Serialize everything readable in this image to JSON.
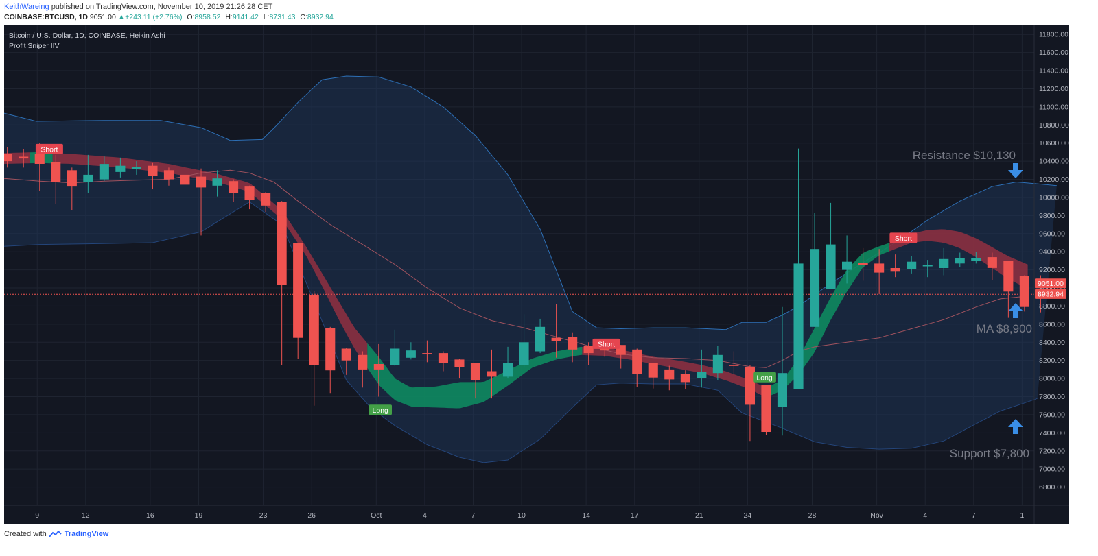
{
  "header": {
    "author": "KeithWareing",
    "published_text": "published on TradingView.com, November 10, 2019 21:26:28 CET",
    "symbol": "COINBASE:BTCUSD, 1D",
    "last": "9051.00",
    "change_arrow": "▲",
    "change": "+243.11 (+2.76%)",
    "o_label": "O:",
    "o_value": "8958.52",
    "h_label": "H:",
    "h_value": "9141.42",
    "l_label": "L:",
    "l_value": "8731.43",
    "c_label": "C:",
    "c_value": "8932.94"
  },
  "legend": {
    "title": "Bitcoin / U.S. Dollar, 1D, COINBASE, Heikin Ashi",
    "indicator": "Profit Sniper IIV"
  },
  "annotations": {
    "resistance": "Resistance $10,130",
    "ma": "MA $8,900",
    "support": "Support $7,800"
  },
  "price_tags": {
    "last": "9051.00",
    "close": "8932.94"
  },
  "footer": {
    "created_with": "Created with",
    "brand": "TradingView"
  },
  "colors": {
    "background": "#131722",
    "bull": "#26a69a",
    "bear": "#ef5350",
    "band_fill": "#1e3a5f",
    "band_line": "#2d6fb5",
    "ribbon_green": "#0e8a5f",
    "ribbon_red": "#8b3040",
    "ma_line": "#a0525e",
    "arrow": "#3a8ee6",
    "long_tag": "#43a047",
    "short_tag": "#e5454f"
  },
  "chart_data": {
    "type": "candlestick",
    "title": "Bitcoin / U.S. Dollar, 1D, COINBASE, Heikin Ashi",
    "ylim": [
      6600,
      11900
    ],
    "y_ticks": [
      6800,
      7000,
      7200,
      7400,
      7600,
      7800,
      8000,
      8200,
      8400,
      8600,
      8800,
      9000,
      9200,
      9400,
      9600,
      9800,
      10000,
      10200,
      10400,
      10600,
      10800,
      11000,
      11200,
      11400,
      11600,
      11800
    ],
    "y_tick_labels": [
      "6800.00",
      "7000.00",
      "7200.00",
      "7400.00",
      "7600.00",
      "7800.00",
      "8000.00",
      "8200.00",
      "8400.00",
      "8600.00",
      "8800.00",
      "9000.00",
      "9200.00",
      "9400.00",
      "9600.00",
      "9800.00",
      "10000.00",
      "10200.00",
      "10400.00",
      "10600.00",
      "10800.00",
      "11000.00",
      "11200.00",
      "11400.00",
      "11600.00",
      "11800.00"
    ],
    "x_range": [
      -0.2,
      63.6
    ],
    "x_ticks": [
      {
        "i": 1.85,
        "label": "9"
      },
      {
        "i": 4.85,
        "label": "12"
      },
      {
        "i": 8.85,
        "label": "16"
      },
      {
        "i": 11.85,
        "label": "19"
      },
      {
        "i": 15.85,
        "label": "23"
      },
      {
        "i": 18.85,
        "label": "26"
      },
      {
        "i": 22.85,
        "label": "Oct"
      },
      {
        "i": 25.85,
        "label": "4"
      },
      {
        "i": 28.85,
        "label": "7"
      },
      {
        "i": 31.85,
        "label": "10"
      },
      {
        "i": 35.85,
        "label": "14"
      },
      {
        "i": 38.85,
        "label": "17"
      },
      {
        "i": 42.85,
        "label": "21"
      },
      {
        "i": 45.85,
        "label": "24"
      },
      {
        "i": 49.85,
        "label": "28"
      },
      {
        "i": 53.85,
        "label": "Nov"
      },
      {
        "i": 56.85,
        "label": "4"
      },
      {
        "i": 59.85,
        "label": "7"
      },
      {
        "i": 62.85,
        "label": "1"
      }
    ],
    "candles": [
      {
        "o": 10480,
        "h": 10560,
        "l": 10330,
        "c": 10400
      },
      {
        "o": 10450,
        "h": 10530,
        "l": 10330,
        "c": 10430
      },
      {
        "o": 10480,
        "h": 10600,
        "l": 10070,
        "c": 10370
      },
      {
        "o": 10390,
        "h": 10470,
        "l": 9930,
        "c": 10170
      },
      {
        "o": 10300,
        "h": 10330,
        "l": 9860,
        "c": 10120
      },
      {
        "o": 10170,
        "h": 10470,
        "l": 10050,
        "c": 10250
      },
      {
        "o": 10200,
        "h": 10460,
        "l": 10180,
        "c": 10370
      },
      {
        "o": 10280,
        "h": 10440,
        "l": 10220,
        "c": 10350
      },
      {
        "o": 10310,
        "h": 10400,
        "l": 10250,
        "c": 10340
      },
      {
        "o": 10350,
        "h": 10380,
        "l": 10090,
        "c": 10240
      },
      {
        "o": 10300,
        "h": 10330,
        "l": 10130,
        "c": 10200
      },
      {
        "o": 10250,
        "h": 10280,
        "l": 10060,
        "c": 10140
      },
      {
        "o": 10230,
        "h": 10320,
        "l": 9580,
        "c": 10110
      },
      {
        "o": 10130,
        "h": 10300,
        "l": 10010,
        "c": 10210
      },
      {
        "o": 10180,
        "h": 10200,
        "l": 9950,
        "c": 10050
      },
      {
        "o": 10120,
        "h": 10130,
        "l": 9870,
        "c": 9970
      },
      {
        "o": 10050,
        "h": 10060,
        "l": 9840,
        "c": 9910
      },
      {
        "o": 9950,
        "h": 9960,
        "l": 8150,
        "c": 9030
      },
      {
        "o": 9500,
        "h": 9500,
        "l": 8220,
        "c": 8450
      },
      {
        "o": 8920,
        "h": 8970,
        "l": 7700,
        "c": 8150
      },
      {
        "o": 8560,
        "h": 8570,
        "l": 7840,
        "c": 8090
      },
      {
        "o": 8330,
        "h": 8340,
        "l": 8040,
        "c": 8200
      },
      {
        "o": 8260,
        "h": 8300,
        "l": 7900,
        "c": 8100
      },
      {
        "o": 8160,
        "h": 8380,
        "l": 7800,
        "c": 8100
      },
      {
        "o": 8150,
        "h": 8540,
        "l": 8140,
        "c": 8330
      },
      {
        "o": 8230,
        "h": 8400,
        "l": 8210,
        "c": 8310
      },
      {
        "o": 8280,
        "h": 8420,
        "l": 8180,
        "c": 8270
      },
      {
        "o": 8280,
        "h": 8300,
        "l": 8080,
        "c": 8170
      },
      {
        "o": 8210,
        "h": 8220,
        "l": 8000,
        "c": 8130
      },
      {
        "o": 8170,
        "h": 8170,
        "l": 7780,
        "c": 7980
      },
      {
        "o": 8080,
        "h": 8320,
        "l": 7780,
        "c": 8020
      },
      {
        "o": 8020,
        "h": 8350,
        "l": 8000,
        "c": 8170
      },
      {
        "o": 8150,
        "h": 8710,
        "l": 8120,
        "c": 8400
      },
      {
        "o": 8300,
        "h": 8660,
        "l": 8280,
        "c": 8570
      },
      {
        "o": 8450,
        "h": 8820,
        "l": 8230,
        "c": 8410
      },
      {
        "o": 8460,
        "h": 8510,
        "l": 8180,
        "c": 8320
      },
      {
        "o": 8360,
        "h": 8400,
        "l": 8150,
        "c": 8280
      },
      {
        "o": 8340,
        "h": 8420,
        "l": 8240,
        "c": 8310
      },
      {
        "o": 8370,
        "h": 8370,
        "l": 8110,
        "c": 8260
      },
      {
        "o": 8320,
        "h": 8330,
        "l": 7910,
        "c": 8050
      },
      {
        "o": 8170,
        "h": 8170,
        "l": 7890,
        "c": 8010
      },
      {
        "o": 8100,
        "h": 8140,
        "l": 7870,
        "c": 7990
      },
      {
        "o": 8050,
        "h": 8090,
        "l": 7880,
        "c": 7960
      },
      {
        "o": 8000,
        "h": 8320,
        "l": 7900,
        "c": 8070
      },
      {
        "o": 8060,
        "h": 8360,
        "l": 7980,
        "c": 8260
      },
      {
        "o": 8150,
        "h": 8300,
        "l": 8050,
        "c": 8140
      },
      {
        "o": 8130,
        "h": 8150,
        "l": 7310,
        "c": 7710
      },
      {
        "o": 7930,
        "h": 7930,
        "l": 7380,
        "c": 7410
      },
      {
        "o": 7690,
        "h": 8790,
        "l": 7370,
        "c": 8060
      },
      {
        "o": 7880,
        "h": 10540,
        "l": 7880,
        "c": 9270
      },
      {
        "o": 8570,
        "h": 9830,
        "l": 8570,
        "c": 9430
      },
      {
        "o": 8990,
        "h": 9940,
        "l": 8990,
        "c": 9480
      },
      {
        "o": 9200,
        "h": 9580,
        "l": 9050,
        "c": 9290
      },
      {
        "o": 9280,
        "h": 9440,
        "l": 9080,
        "c": 9250
      },
      {
        "o": 9270,
        "h": 9430,
        "l": 8930,
        "c": 9170
      },
      {
        "o": 9220,
        "h": 9370,
        "l": 9120,
        "c": 9180
      },
      {
        "o": 9210,
        "h": 9350,
        "l": 9160,
        "c": 9290
      },
      {
        "o": 9240,
        "h": 9310,
        "l": 9120,
        "c": 9250
      },
      {
        "o": 9220,
        "h": 9440,
        "l": 9140,
        "c": 9320
      },
      {
        "o": 9270,
        "h": 9390,
        "l": 9230,
        "c": 9330
      },
      {
        "o": 9300,
        "h": 9400,
        "l": 9270,
        "c": 9330
      },
      {
        "o": 9340,
        "h": 9390,
        "l": 9090,
        "c": 9220
      },
      {
        "o": 9300,
        "h": 9300,
        "l": 8670,
        "c": 8960
      },
      {
        "o": 9130,
        "h": 9140,
        "l": 8740,
        "c": 8790
      },
      {
        "o": 8960,
        "h": 9140,
        "l": 8730,
        "c": 8930
      }
    ],
    "bollinger_upper": [
      [
        -0.2,
        10930
      ],
      [
        1.8,
        10840
      ],
      [
        6,
        10850
      ],
      [
        9.5,
        10850
      ],
      [
        12,
        10770
      ],
      [
        13.8,
        10630
      ],
      [
        15.8,
        10640
      ],
      [
        16.7,
        10800
      ],
      [
        18,
        11050
      ],
      [
        19.5,
        11300
      ],
      [
        21,
        11340
      ],
      [
        23,
        11330
      ],
      [
        25,
        11220
      ],
      [
        27,
        11000
      ],
      [
        29,
        10680
      ],
      [
        31,
        10250
      ],
      [
        33,
        9650
      ],
      [
        35,
        8740
      ],
      [
        36.5,
        8560
      ],
      [
        38,
        8550
      ],
      [
        40,
        8560
      ],
      [
        42,
        8560
      ],
      [
        44.5,
        8540
      ],
      [
        45.5,
        8620
      ],
      [
        47,
        8620
      ],
      [
        48,
        8700
      ],
      [
        49,
        8800
      ],
      [
        51,
        9050
      ],
      [
        53,
        9280
      ],
      [
        55,
        9500
      ],
      [
        57,
        9750
      ],
      [
        59,
        9960
      ],
      [
        61,
        10120
      ],
      [
        62.5,
        10170
      ],
      [
        63.8,
        10150
      ],
      [
        65,
        10130
      ]
    ],
    "bollinger_lower": [
      [
        -0.2,
        9460
      ],
      [
        2,
        9480
      ],
      [
        6,
        9490
      ],
      [
        9,
        9500
      ],
      [
        12,
        9620
      ],
      [
        15,
        9950
      ],
      [
        17,
        9700
      ],
      [
        19,
        8850
      ],
      [
        21,
        7980
      ],
      [
        22.5,
        7680
      ],
      [
        24,
        7480
      ],
      [
        26,
        7270
      ],
      [
        28,
        7130
      ],
      [
        29.5,
        7070
      ],
      [
        31,
        7100
      ],
      [
        33,
        7330
      ],
      [
        35,
        7680
      ],
      [
        36.5,
        7930
      ],
      [
        38,
        7950
      ],
      [
        40,
        7940
      ],
      [
        42,
        7940
      ],
      [
        44,
        7870
      ],
      [
        45.5,
        7620
      ],
      [
        47,
        7520
      ],
      [
        48,
        7450
      ],
      [
        50,
        7300
      ],
      [
        52,
        7240
      ],
      [
        54,
        7220
      ],
      [
        56,
        7230
      ],
      [
        58,
        7310
      ],
      [
        60,
        7500
      ],
      [
        61.5,
        7640
      ],
      [
        63,
        7730
      ],
      [
        63.8,
        7780
      ]
    ],
    "moving_average": [
      [
        -0.2,
        10210
      ],
      [
        2,
        10180
      ],
      [
        4,
        10160
      ],
      [
        6,
        10180
      ],
      [
        8,
        10190
      ],
      [
        10,
        10200
      ],
      [
        12,
        10270
      ],
      [
        13.8,
        10300
      ],
      [
        15,
        10270
      ],
      [
        16.5,
        10170
      ],
      [
        18,
        9960
      ],
      [
        20,
        9700
      ],
      [
        22,
        9480
      ],
      [
        24,
        9260
      ],
      [
        26,
        9000
      ],
      [
        28,
        8780
      ],
      [
        30,
        8640
      ],
      [
        32,
        8560
      ],
      [
        34,
        8460
      ],
      [
        36,
        8360
      ],
      [
        38,
        8270
      ],
      [
        40,
        8230
      ],
      [
        42,
        8220
      ],
      [
        44,
        8200
      ],
      [
        46,
        8130
      ],
      [
        47,
        8120
      ],
      [
        48,
        8200
      ],
      [
        49,
        8300
      ],
      [
        50,
        8350
      ],
      [
        52,
        8400
      ],
      [
        54,
        8450
      ],
      [
        56,
        8550
      ],
      [
        58,
        8650
      ],
      [
        60,
        8790
      ],
      [
        61.5,
        8880
      ],
      [
        63.2,
        8910
      ]
    ],
    "ribbon_upper": [
      [
        -0.2,
        10490
      ],
      [
        2,
        10500
      ],
      [
        4,
        10480
      ],
      [
        7,
        10440
      ],
      [
        10,
        10370
      ],
      [
        13,
        10260
      ],
      [
        15,
        10160
      ],
      [
        17,
        9860
      ],
      [
        18.5,
        9460
      ],
      [
        19.5,
        9160
      ],
      [
        20.5,
        8860
      ],
      [
        21.5,
        8560
      ],
      [
        23,
        8240
      ],
      [
        24,
        8000
      ],
      [
        25,
        7900
      ],
      [
        26.5,
        7910
      ],
      [
        28,
        7960
      ],
      [
        29.5,
        7960
      ],
      [
        31,
        8090
      ],
      [
        32.5,
        8220
      ],
      [
        34,
        8300
      ],
      [
        35.5,
        8350
      ],
      [
        37,
        8340
      ],
      [
        38.5,
        8300
      ],
      [
        40,
        8240
      ],
      [
        41.5,
        8200
      ],
      [
        43,
        8150
      ],
      [
        44.5,
        8080
      ],
      [
        46,
        7980
      ],
      [
        47,
        7900
      ],
      [
        48,
        7980
      ],
      [
        49,
        8220
      ],
      [
        50,
        8560
      ],
      [
        51,
        8900
      ],
      [
        52,
        9200
      ],
      [
        53,
        9390
      ],
      [
        54,
        9460
      ],
      [
        55,
        9520
      ],
      [
        56,
        9600
      ],
      [
        57,
        9640
      ],
      [
        58,
        9650
      ],
      [
        59,
        9620
      ],
      [
        60,
        9550
      ],
      [
        61,
        9450
      ],
      [
        62,
        9350
      ],
      [
        63.2,
        9260
      ]
    ],
    "ribbon_lower": [
      [
        -0.2,
        10370
      ],
      [
        2,
        10380
      ],
      [
        4,
        10370
      ],
      [
        7,
        10330
      ],
      [
        10,
        10270
      ],
      [
        13,
        10170
      ],
      [
        15,
        10060
      ],
      [
        17,
        9760
      ],
      [
        18.5,
        9360
      ],
      [
        19.5,
        9020
      ],
      [
        20.5,
        8660
      ],
      [
        21.5,
        8330
      ],
      [
        23,
        7930
      ],
      [
        24,
        7760
      ],
      [
        25,
        7690
      ],
      [
        26.5,
        7680
      ],
      [
        28,
        7670
      ],
      [
        29.5,
        7740
      ],
      [
        31,
        7920
      ],
      [
        32.5,
        8120
      ],
      [
        34,
        8210
      ],
      [
        35.5,
        8260
      ],
      [
        37,
        8250
      ],
      [
        38.5,
        8210
      ],
      [
        40,
        8160
      ],
      [
        41.5,
        8110
      ],
      [
        43,
        8060
      ],
      [
        44.5,
        7980
      ],
      [
        46,
        7880
      ],
      [
        47,
        7790
      ],
      [
        48,
        7870
      ],
      [
        49,
        8040
      ],
      [
        50,
        8290
      ],
      [
        51,
        8650
      ],
      [
        52,
        8960
      ],
      [
        53,
        9230
      ],
      [
        54,
        9360
      ],
      [
        55,
        9430
      ],
      [
        56,
        9500
      ],
      [
        57,
        9520
      ],
      [
        58,
        9500
      ],
      [
        59,
        9440
      ],
      [
        60,
        9340
      ],
      [
        61,
        9220
      ],
      [
        62,
        9100
      ],
      [
        63.2,
        8990
      ]
    ],
    "ribbon_red_ranges": [
      [
        -0.2,
        1.4
      ],
      [
        2.8,
        22.3
      ],
      [
        35.6,
        47.2
      ],
      [
        54.6,
        63.2
      ]
    ],
    "ribbon_green_ranges": [
      [
        1.4,
        2.8
      ],
      [
        22.3,
        35.6
      ],
      [
        47.2,
        54.6
      ]
    ],
    "signals": [
      {
        "label": "Short",
        "i": 2.6,
        "price": 10530,
        "type": "short"
      },
      {
        "label": "Long",
        "i": 23.1,
        "price": 7650,
        "type": "long"
      },
      {
        "label": "Short",
        "i": 37.1,
        "price": 8380,
        "type": "short"
      },
      {
        "label": "Long",
        "i": 46.9,
        "price": 8010,
        "type": "long"
      },
      {
        "label": "Short",
        "i": 55.5,
        "price": 9550,
        "type": "short"
      }
    ]
  }
}
